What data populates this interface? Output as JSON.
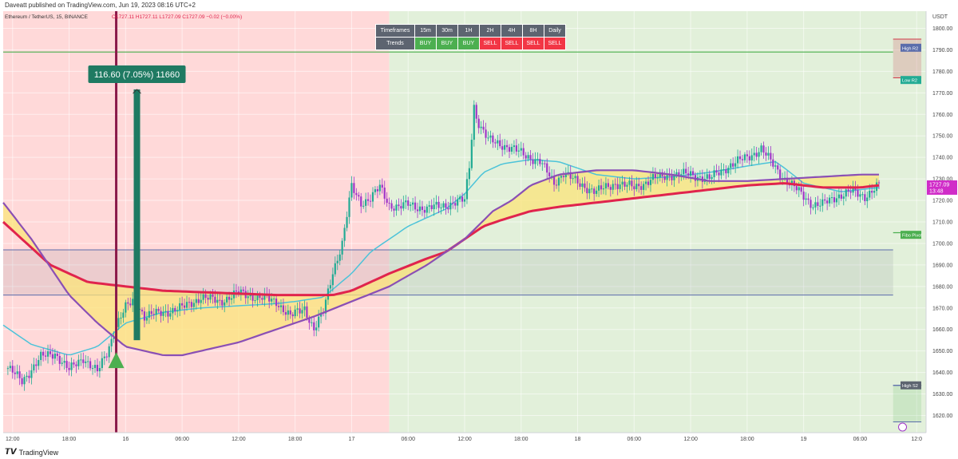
{
  "header": {
    "published_by": "Daveatt published on TradingView.com, Jun 19, 2023 08:16 UTC+2",
    "symbol_line": "Ethereum / TetherUS, 15, BINANCE",
    "ohlc": "O1727.11 H1727.11 L1727.09 C1727.09 −0.02 (−0.00%)"
  },
  "footer": {
    "brand": "TradingView"
  },
  "colors": {
    "bear_bg": "#ffd9d9",
    "bull_bg": "#e2f0da",
    "up": "#22ab94",
    "down": "#a035c8",
    "ema_fast": "#4cc3d9",
    "ema_slow": "#e0244d",
    "hma": "#8a4fb5",
    "fill": "#fbe479",
    "pivot_green": "#4caf50",
    "pivot_blue": "#5b6dab",
    "measure": "#1f7a62",
    "signal_line": "#8b1a4a"
  },
  "timeframes_table": {
    "header_label": "Timeframes",
    "row_label": "Trends",
    "timeframes": [
      "15m",
      "30m",
      "1H",
      "2H",
      "4H",
      "8H",
      "Daily"
    ],
    "trends": [
      "BUY",
      "BUY",
      "BUY",
      "SELL",
      "SELL",
      "SELL",
      "SELL"
    ]
  },
  "measure_label": "116.60 (7.05%) 11660",
  "axis_tags": {
    "price": "1727.09",
    "countdown": "13:48",
    "high_r2": "High R2",
    "low_r2": "Low R2",
    "fibo_pivot": "Fibo Pivot",
    "high_s2": "High S2",
    "currency": "USDT"
  },
  "chart_data": {
    "type": "candlestick",
    "title": "Ethereum / TetherUS, 15, BINANCE",
    "ylabel": "USDT",
    "ylim": [
      1612,
      1808
    ],
    "y_ticks": [
      1800,
      1790,
      1780,
      1770,
      1760,
      1750,
      1740,
      1730,
      1720,
      1710,
      1700,
      1690,
      1680,
      1670,
      1660,
      1650,
      1640,
      1630,
      1620
    ],
    "x_ticks": [
      {
        "label": "12:00",
        "hour": 0
      },
      {
        "label": "18:00",
        "hour": 6
      },
      {
        "label": "16",
        "hour": 12
      },
      {
        "label": "06:00",
        "hour": 18
      },
      {
        "label": "12:00",
        "hour": 24
      },
      {
        "label": "18:00",
        "hour": 30
      },
      {
        "label": "17",
        "hour": 36
      },
      {
        "label": "06:00",
        "hour": 42
      },
      {
        "label": "12:00",
        "hour": 48
      },
      {
        "label": "18:00",
        "hour": 54
      },
      {
        "label": "18",
        "hour": 60
      },
      {
        "label": "06:00",
        "hour": 66
      },
      {
        "label": "12:00",
        "hour": 72
      },
      {
        "label": "18:00",
        "hour": 78
      },
      {
        "label": "19",
        "hour": 84
      },
      {
        "label": "06:00",
        "hour": 90
      },
      {
        "label": "12:0",
        "hour": 96
      }
    ],
    "hour_range": [
      -1,
      97
    ],
    "background_zones": [
      {
        "from_hour": -1,
        "to_hour": 40,
        "trend": "bear"
      },
      {
        "from_hour": 40,
        "to_hour": 97,
        "trend": "bull"
      }
    ],
    "close_series": {
      "hours": [
        -0.5,
        1,
        3,
        4.5,
        6,
        7.5,
        9,
        10,
        11,
        12,
        13,
        14,
        16,
        18,
        20,
        22,
        24,
        26,
        28,
        29.5,
        31,
        32,
        33,
        34,
        35,
        36,
        37,
        38,
        39,
        40,
        41,
        42,
        44,
        46,
        48,
        48.5,
        49,
        49.3,
        49.7,
        50.5,
        52,
        54,
        56,
        57.5,
        58.5,
        60,
        62,
        64,
        66,
        68,
        70,
        72,
        74,
        76,
        78,
        79.5,
        80.5,
        82,
        83,
        84,
        85,
        86,
        87.5,
        89,
        90.5,
        92
      ],
      "values": [
        1642,
        1636,
        1647,
        1649,
        1641,
        1647,
        1640,
        1649,
        1662,
        1670,
        1674,
        1666,
        1668,
        1670,
        1675,
        1673,
        1677,
        1675,
        1673,
        1666,
        1670,
        1660,
        1668,
        1687,
        1700,
        1726,
        1719,
        1721,
        1726,
        1718,
        1717,
        1718,
        1716,
        1718,
        1720,
        1736,
        1764,
        1758,
        1754,
        1748,
        1746,
        1742,
        1738,
        1728,
        1733,
        1728,
        1724,
        1728,
        1726,
        1730,
        1732,
        1732,
        1730,
        1736,
        1740,
        1744,
        1738,
        1730,
        1726,
        1722,
        1718,
        1718,
        1722,
        1724,
        1722,
        1727
      ]
    },
    "ema_fast": {
      "hours": [
        -1,
        2,
        6,
        9,
        12,
        16,
        20,
        24,
        28,
        30,
        33,
        36,
        38,
        42,
        46,
        48,
        50,
        52,
        55,
        58,
        62,
        66,
        70,
        74,
        78,
        81,
        82,
        84,
        88,
        92
      ],
      "values": [
        1662,
        1653,
        1648,
        1652,
        1663,
        1668,
        1670,
        1671,
        1672,
        1673,
        1675,
        1686,
        1696,
        1708,
        1716,
        1723,
        1733,
        1737,
        1739,
        1738,
        1732,
        1730,
        1731,
        1733,
        1736,
        1738,
        1735,
        1728,
        1724,
        1726
      ]
    },
    "ema_slow": {
      "hours": [
        -1,
        4,
        8,
        12,
        16,
        22,
        28,
        32,
        34,
        36,
        40,
        44,
        46,
        48,
        50,
        52,
        55,
        58,
        62,
        66,
        70,
        74,
        78,
        82,
        86,
        90,
        92
      ],
      "values": [
        1710,
        1690,
        1682,
        1680,
        1678,
        1677,
        1676,
        1676,
        1676,
        1678,
        1686,
        1693,
        1696,
        1702,
        1708,
        1711,
        1715,
        1717,
        1719,
        1721,
        1723,
        1725,
        1727,
        1728,
        1726,
        1726,
        1727
      ]
    },
    "hma": {
      "hours": [
        -1,
        2,
        6,
        9,
        12,
        16,
        18,
        20,
        24,
        28,
        32,
        36,
        40,
        44,
        48,
        51,
        53,
        55,
        58,
        62,
        66,
        70,
        74,
        78,
        82,
        86,
        90,
        92
      ],
      "values": [
        1719,
        1702,
        1676,
        1663,
        1652,
        1648,
        1648,
        1650,
        1654,
        1660,
        1666,
        1673,
        1680,
        1690,
        1702,
        1715,
        1720,
        1727,
        1732,
        1734,
        1734,
        1732,
        1729,
        1729,
        1730,
        1731,
        1732,
        1732
      ]
    },
    "horizontal_levels": [
      {
        "name": "High R2",
        "price": 1789,
        "from_hour": -1,
        "to_hour": 93.5,
        "color": "#4caf50"
      },
      {
        "name": "Fibo Pivot",
        "price": 1705,
        "from_hour": 93.5,
        "to_hour": 96.5,
        "color": "#4caf50"
      },
      {
        "name": "High S2",
        "price": 1634,
        "from_hour": 93.5,
        "to_hour": 96.5,
        "color": "#5b6dab"
      }
    ],
    "zone_boxes": [
      {
        "from_hour": -1,
        "to_hour": 93.5,
        "top": 1697,
        "bottom": 1676,
        "border": "#5b6dab"
      },
      {
        "from_hour": 93.5,
        "to_hour": 96.5,
        "top": 1795,
        "bottom": 1777,
        "border": "#d03b4a"
      },
      {
        "from_hour": 93.5,
        "to_hour": 96.5,
        "top": 1634,
        "bottom": 1617,
        "border": "#5b6dab"
      }
    ],
    "vertical_marker_hour": 11,
    "buy_signal": {
      "hour": 11,
      "price": 1645
    },
    "measure": {
      "from_hour": 13.2,
      "from_price": 1655,
      "to_price": 1771.6,
      "label": "116.60 (7.05%) 11660"
    }
  }
}
